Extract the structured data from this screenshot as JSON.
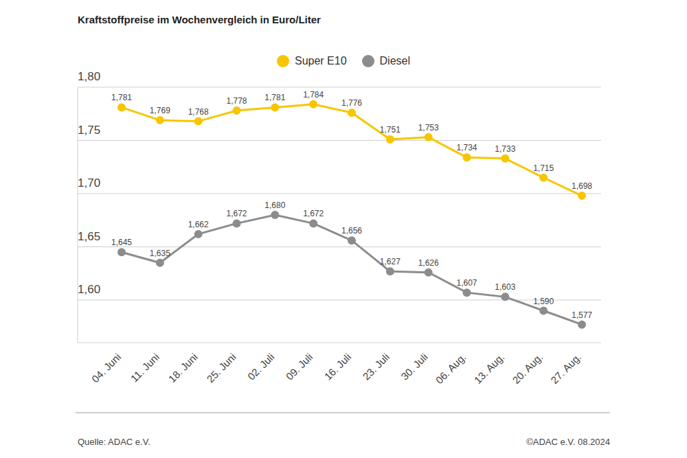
{
  "chart_data": {
    "type": "line",
    "title": "Kraftstoffpreise im Wochenvergleich in Euro/Liter",
    "source": "Quelle: ADAC e.V.",
    "credit": "©ADAC e.V. 08.2024",
    "categories": [
      "04. Juni",
      "11. Juni",
      "18. Juni",
      "25. Juni",
      "02. Juli",
      "09. Juli",
      "16. Juli",
      "23. Juli",
      "30. Juli",
      "06. Aug.",
      "13. Aug.",
      "20. Aug.",
      "27. Aug."
    ],
    "series": [
      {
        "name": "Super E10",
        "color": "#f7c600",
        "values": [
          1.781,
          1.769,
          1.768,
          1.778,
          1.781,
          1.784,
          1.776,
          1.751,
          1.753,
          1.734,
          1.733,
          1.715,
          1.698
        ],
        "value_labels": [
          "1,781",
          "1,769",
          "1,768",
          "1,778",
          "1,781",
          "1,784",
          "1,776",
          "1,751",
          "1,753",
          "1,734",
          "1,733",
          "1,715",
          "1,698"
        ]
      },
      {
        "name": "Diesel",
        "color": "#8c8c8c",
        "values": [
          1.645,
          1.635,
          1.662,
          1.672,
          1.68,
          1.672,
          1.656,
          1.627,
          1.626,
          1.607,
          1.603,
          1.59,
          1.577
        ],
        "value_labels": [
          "1,645",
          "1,635",
          "1,662",
          "1,672",
          "1,680",
          "1,672",
          "1,656",
          "1,627",
          "1,626",
          "1,607",
          "1,603",
          "1,590",
          "1,577"
        ]
      }
    ],
    "ylim": [
      1.56,
      1.8
    ],
    "yticks": [
      {
        "value": 1.6,
        "label": "1,60"
      },
      {
        "value": 1.65,
        "label": "1,65"
      },
      {
        "value": 1.7,
        "label": "1,70"
      },
      {
        "value": 1.75,
        "label": "1,75"
      },
      {
        "value": 1.8,
        "label": "1,80"
      }
    ],
    "grid": true,
    "legend": "top",
    "data_labels": true,
    "marker": "circle"
  }
}
